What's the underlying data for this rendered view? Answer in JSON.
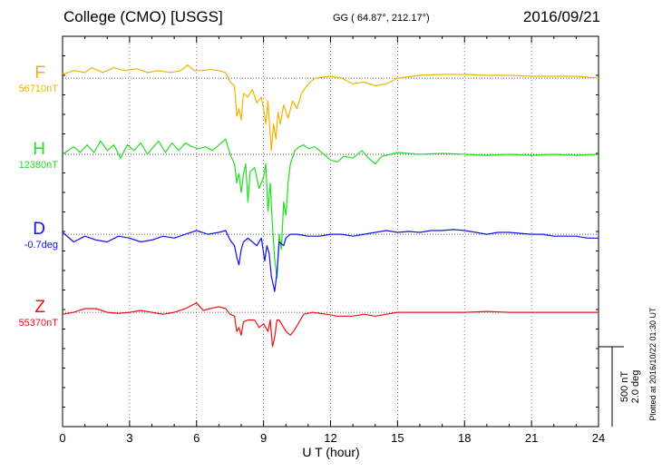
{
  "header": {
    "station": "College (CMO)  [USGS]",
    "coords": "GG ( 64.87°, 212.17°)",
    "date": "2016/09/21"
  },
  "scale_label": {
    "line1": "500 nT",
    "line2": "2.0 deg"
  },
  "plotted_note": "Plotted at 2016/10/22 01:30 UT",
  "chart_data": {
    "type": "line",
    "xlabel": "U T (hour)",
    "xlim": [
      0,
      24
    ],
    "xticks": [
      0,
      3,
      6,
      9,
      12,
      15,
      18,
      21,
      24
    ],
    "grid": true,
    "y_span_nT": [
      -1100,
      950
    ],
    "series": [
      {
        "name": "F",
        "baseline_label": "56710nT",
        "color": "#f0b400",
        "baseline_offset_nT": 730,
        "points": [
          [
            0,
            20
          ],
          [
            0.5,
            40
          ],
          [
            1,
            30
          ],
          [
            1.3,
            55
          ],
          [
            1.8,
            30
          ],
          [
            2.3,
            55
          ],
          [
            2.8,
            40
          ],
          [
            3.3,
            50
          ],
          [
            3.8,
            30
          ],
          [
            4.3,
            40
          ],
          [
            4.8,
            30
          ],
          [
            5.3,
            40
          ],
          [
            5.6,
            70
          ],
          [
            5.9,
            40
          ],
          [
            6.2,
            40
          ],
          [
            6.6,
            45
          ],
          [
            7,
            40
          ],
          [
            7.3,
            30
          ],
          [
            7.5,
            -20
          ],
          [
            7.7,
            -40
          ],
          [
            7.8,
            -200
          ],
          [
            7.9,
            -160
          ],
          [
            8.0,
            -220
          ],
          [
            8.1,
            -80
          ],
          [
            8.3,
            -100
          ],
          [
            8.5,
            -60
          ],
          [
            8.7,
            -130
          ],
          [
            8.9,
            -100
          ],
          [
            9.0,
            -160
          ],
          [
            9.1,
            -240
          ],
          [
            9.2,
            -120
          ],
          [
            9.35,
            -380
          ],
          [
            9.45,
            -240
          ],
          [
            9.55,
            -320
          ],
          [
            9.65,
            -180
          ],
          [
            9.75,
            -240
          ],
          [
            9.9,
            -140
          ],
          [
            10.1,
            -210
          ],
          [
            10.3,
            -120
          ],
          [
            10.5,
            -160
          ],
          [
            10.7,
            -80
          ],
          [
            11.0,
            -30
          ],
          [
            11.3,
            0
          ],
          [
            12.0,
            10
          ],
          [
            12.5,
            0
          ],
          [
            13.0,
            -30
          ],
          [
            13.5,
            -20
          ],
          [
            14.0,
            -40
          ],
          [
            14.5,
            -30
          ],
          [
            15.0,
            0
          ],
          [
            16,
            15
          ],
          [
            17,
            20
          ],
          [
            18,
            20
          ],
          [
            19,
            15
          ],
          [
            20,
            15
          ],
          [
            21,
            10
          ],
          [
            22,
            10
          ],
          [
            23,
            10
          ],
          [
            24,
            0
          ]
        ]
      },
      {
        "name": "H",
        "baseline_label": "12380nT",
        "color": "#22dd22",
        "baseline_offset_nT": 330,
        "points": [
          [
            0,
            0
          ],
          [
            0.5,
            40
          ],
          [
            0.8,
            10
          ],
          [
            1.1,
            50
          ],
          [
            1.4,
            10
          ],
          [
            1.7,
            70
          ],
          [
            2.0,
            20
          ],
          [
            2.3,
            50
          ],
          [
            2.6,
            -20
          ],
          [
            2.9,
            50
          ],
          [
            3.2,
            20
          ],
          [
            3.5,
            60
          ],
          [
            3.8,
            0
          ],
          [
            4.0,
            30
          ],
          [
            4.3,
            70
          ],
          [
            4.6,
            10
          ],
          [
            4.9,
            60
          ],
          [
            5.2,
            20
          ],
          [
            5.5,
            60
          ],
          [
            5.8,
            40
          ],
          [
            6.1,
            30
          ],
          [
            6.4,
            40
          ],
          [
            6.7,
            20
          ],
          [
            7.0,
            50
          ],
          [
            7.3,
            80
          ],
          [
            7.5,
            0
          ],
          [
            7.7,
            -50
          ],
          [
            7.8,
            -150
          ],
          [
            7.9,
            -100
          ],
          [
            8.0,
            -200
          ],
          [
            8.1,
            -100
          ],
          [
            8.2,
            -50
          ],
          [
            8.3,
            -250
          ],
          [
            8.4,
            -90
          ],
          [
            8.6,
            -70
          ],
          [
            8.8,
            -180
          ],
          [
            9.0,
            -120
          ],
          [
            9.1,
            -50
          ],
          [
            9.2,
            -300
          ],
          [
            9.3,
            -150
          ],
          [
            9.4,
            -380
          ],
          [
            9.5,
            -550
          ],
          [
            9.6,
            -650
          ],
          [
            9.7,
            -420
          ],
          [
            9.8,
            -500
          ],
          [
            9.9,
            -250
          ],
          [
            10.0,
            -320
          ],
          [
            10.1,
            -150
          ],
          [
            10.2,
            -50
          ],
          [
            10.4,
            20
          ],
          [
            10.6,
            40
          ],
          [
            10.8,
            50
          ],
          [
            11.0,
            30
          ],
          [
            11.3,
            40
          ],
          [
            11.6,
            10
          ],
          [
            12.0,
            -30
          ],
          [
            12.3,
            -40
          ],
          [
            12.6,
            -10
          ],
          [
            13.0,
            -20
          ],
          [
            13.4,
            20
          ],
          [
            13.7,
            -20
          ],
          [
            14.0,
            -50
          ],
          [
            14.3,
            -10
          ],
          [
            14.7,
            0
          ],
          [
            15.0,
            10
          ],
          [
            16,
            0
          ],
          [
            17,
            5
          ],
          [
            18,
            0
          ],
          [
            19,
            -5
          ],
          [
            20,
            0
          ],
          [
            21,
            -5
          ],
          [
            22,
            0
          ],
          [
            23,
            -5
          ],
          [
            24,
            0
          ]
        ]
      },
      {
        "name": "D",
        "baseline_label": "-0.7deg",
        "color": "#1010ee",
        "baseline_offset_nT": -90,
        "points": [
          [
            0,
            10
          ],
          [
            0.5,
            -40
          ],
          [
            1.0,
            -10
          ],
          [
            1.5,
            -30
          ],
          [
            2.0,
            -40
          ],
          [
            2.5,
            -10
          ],
          [
            3.0,
            -20
          ],
          [
            3.5,
            -40
          ],
          [
            4.0,
            -30
          ],
          [
            4.5,
            -10
          ],
          [
            5.0,
            -20
          ],
          [
            5.5,
            0
          ],
          [
            6.0,
            20
          ],
          [
            6.5,
            0
          ],
          [
            7.0,
            10
          ],
          [
            7.3,
            20
          ],
          [
            7.5,
            -30
          ],
          [
            7.7,
            -60
          ],
          [
            7.8,
            -120
          ],
          [
            7.9,
            -160
          ],
          [
            8.0,
            -80
          ],
          [
            8.1,
            -40
          ],
          [
            8.3,
            -20
          ],
          [
            8.5,
            -40
          ],
          [
            8.7,
            -60
          ],
          [
            8.9,
            -20
          ],
          [
            9.05,
            -140
          ],
          [
            9.15,
            -60
          ],
          [
            9.25,
            -100
          ],
          [
            9.35,
            -220
          ],
          [
            9.5,
            -300
          ],
          [
            9.6,
            -200
          ],
          [
            9.7,
            -40
          ],
          [
            9.9,
            -60
          ],
          [
            10.0,
            -20
          ],
          [
            10.2,
            0
          ],
          [
            10.5,
            0
          ],
          [
            11,
            -10
          ],
          [
            11.5,
            -10
          ],
          [
            12,
            0
          ],
          [
            12.5,
            0
          ],
          [
            13,
            -10
          ],
          [
            13.5,
            0
          ],
          [
            14,
            10
          ],
          [
            14.5,
            20
          ],
          [
            15,
            10
          ],
          [
            15.5,
            15
          ],
          [
            16,
            10
          ],
          [
            16.5,
            20
          ],
          [
            17,
            20
          ],
          [
            17.5,
            25
          ],
          [
            18,
            20
          ],
          [
            18.5,
            10
          ],
          [
            19,
            0
          ],
          [
            19.5,
            10
          ],
          [
            20,
            10
          ],
          [
            20.5,
            5
          ],
          [
            21,
            0
          ],
          [
            21.5,
            0
          ],
          [
            22,
            -10
          ],
          [
            22.5,
            -10
          ],
          [
            23,
            -10
          ],
          [
            23.5,
            -20
          ],
          [
            24,
            -20
          ]
        ]
      },
      {
        "name": "Z",
        "baseline_label": "55370nT",
        "color": "#ee1111",
        "baseline_offset_nT": -500,
        "points": [
          [
            0,
            -10
          ],
          [
            0.5,
            0
          ],
          [
            1.0,
            20
          ],
          [
            1.5,
            20
          ],
          [
            2.0,
            0
          ],
          [
            2.5,
            -5
          ],
          [
            3.0,
            0
          ],
          [
            3.5,
            10
          ],
          [
            4.0,
            0
          ],
          [
            4.5,
            -10
          ],
          [
            5.0,
            0
          ],
          [
            5.5,
            20
          ],
          [
            6.0,
            50
          ],
          [
            6.3,
            10
          ],
          [
            6.6,
            20
          ],
          [
            7.0,
            30
          ],
          [
            7.3,
            20
          ],
          [
            7.5,
            -10
          ],
          [
            7.7,
            -20
          ],
          [
            7.8,
            -100
          ],
          [
            7.9,
            -80
          ],
          [
            8.0,
            -120
          ],
          [
            8.1,
            -50
          ],
          [
            8.3,
            -40
          ],
          [
            8.6,
            -40
          ],
          [
            8.8,
            -80
          ],
          [
            9.0,
            -60
          ],
          [
            9.2,
            -100
          ],
          [
            9.3,
            -40
          ],
          [
            9.4,
            -180
          ],
          [
            9.5,
            -130
          ],
          [
            9.6,
            -40
          ],
          [
            9.7,
            -40
          ],
          [
            9.8,
            -60
          ],
          [
            10.0,
            -100
          ],
          [
            10.2,
            -120
          ],
          [
            10.4,
            -90
          ],
          [
            10.6,
            -50
          ],
          [
            10.8,
            -10
          ],
          [
            11.2,
            0
          ],
          [
            11.8,
            -10
          ],
          [
            12.3,
            -20
          ],
          [
            13.0,
            -20
          ],
          [
            13.5,
            -10
          ],
          [
            14.0,
            -20
          ],
          [
            14.5,
            -10
          ],
          [
            15.0,
            0
          ],
          [
            16,
            0
          ],
          [
            17,
            0
          ],
          [
            18,
            0
          ],
          [
            19,
            5
          ],
          [
            20,
            0
          ],
          [
            21,
            0
          ],
          [
            22,
            0
          ],
          [
            23,
            0
          ],
          [
            24,
            0
          ]
        ]
      }
    ]
  }
}
